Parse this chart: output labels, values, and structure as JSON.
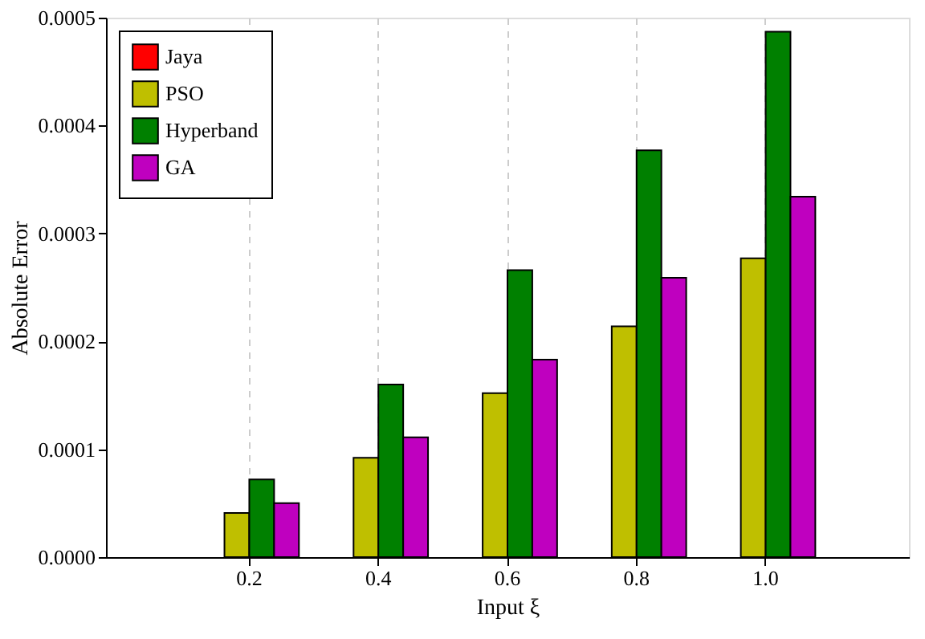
{
  "chart_data": {
    "type": "bar",
    "xlabel": "Input ξ",
    "ylabel": "Absolute Error",
    "categories": [
      "0.2",
      "0.4",
      "0.6",
      "0.8",
      "1.0"
    ],
    "series": [
      {
        "name": "Jaya",
        "color": "#ff0000",
        "values": [
          0,
          0,
          0,
          0,
          0
        ]
      },
      {
        "name": "PSO",
        "color": "#bfbf00",
        "values": [
          4.1e-05,
          9.2e-05,
          0.000152,
          0.000214,
          0.000277
        ]
      },
      {
        "name": "Hyperband",
        "color": "#008000",
        "values": [
          7.2e-05,
          0.00016,
          0.000266,
          0.000377,
          0.000487
        ]
      },
      {
        "name": "GA",
        "color": "#bf00bf",
        "values": [
          5e-05,
          0.000111,
          0.000183,
          0.000259,
          0.000334
        ]
      }
    ],
    "ylim": [
      0,
      0.0005
    ],
    "yticks": [
      {
        "value": 0,
        "label": "0.0000"
      },
      {
        "value": 0.0001,
        "label": "0.0001"
      },
      {
        "value": 0.0002,
        "label": "0.0002"
      },
      {
        "value": 0.0003,
        "label": "0.0003"
      },
      {
        "value": 0.0004,
        "label": "0.0004"
      },
      {
        "value": 0.0005,
        "label": "0.0005"
      }
    ],
    "grid": "x",
    "legend": "top left"
  }
}
